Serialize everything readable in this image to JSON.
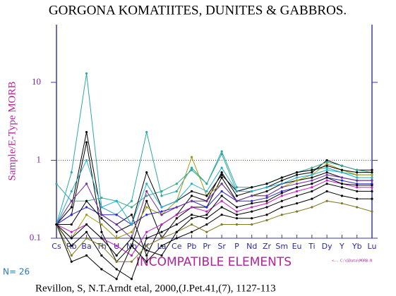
{
  "chart_data": {
    "type": "line",
    "title": "GORGONA KOMATIITES, DUNITES & GABBROS.",
    "y_label": "Sample/E-Type MORB",
    "x_label": "INCOMPATIBLE ELEMENTS",
    "annotation": "N= 26",
    "legend_note": "<-- C:\\GData\\MORB-N",
    "citation": "Revillon, S, N.T.Arndt etal, 2000,(J.Pet.41,(7), 1127-113",
    "log_scale": true,
    "ylim": [
      0.1,
      55
    ],
    "yticks": [
      0.1,
      1,
      10
    ],
    "reference_line": 1,
    "categories": [
      "Cs",
      "Rb",
      "Ba",
      "Th",
      "U",
      "Nb",
      "K",
      "La",
      "Ce",
      "Pb",
      "Pr",
      "Sr",
      "P",
      "Nd",
      "Zr",
      "Sm",
      "Eu",
      "Ti",
      "Dy",
      "Y",
      "Yb",
      "Lu"
    ],
    "series": [
      {
        "color": "#2aa8a8",
        "values": [
          0.15,
          0.7,
          13,
          0.25,
          0.2,
          0.3,
          2.3,
          0.35,
          0.4,
          0.8,
          0.5,
          1.3,
          0.45,
          0.45,
          0.5,
          0.6,
          0.7,
          0.75,
          0.8,
          0.7,
          0.65,
          0.65
        ]
      },
      {
        "color": "#000000",
        "values": [
          0.15,
          0.25,
          2.3,
          0.2,
          0.15,
          0.2,
          0.06,
          0.15,
          0.2,
          0.35,
          0.3,
          0.7,
          0.35,
          0.4,
          0.45,
          0.55,
          0.65,
          0.7,
          1.0,
          0.85,
          0.75,
          0.75
        ]
      },
      {
        "color": "#000000",
        "values": [
          0.15,
          0.2,
          1.7,
          0.12,
          0.05,
          0.08,
          0.3,
          0.1,
          0.18,
          0.25,
          0.25,
          0.6,
          0.3,
          0.35,
          0.4,
          0.5,
          0.55,
          0.6,
          0.7,
          0.6,
          0.55,
          0.55
        ]
      },
      {
        "color": "#a09a10",
        "values": [
          0.15,
          0.1,
          0.2,
          0.15,
          0.1,
          0.12,
          0.25,
          0.2,
          0.3,
          1.1,
          0.35,
          0.5,
          0.3,
          0.35,
          0.35,
          0.45,
          0.55,
          0.65,
          0.9,
          0.75,
          0.65,
          0.65
        ]
      },
      {
        "color": "#3aa890",
        "values": [
          0.5,
          0.3,
          0.3,
          0.33,
          0.3,
          0.25,
          0.35,
          0.4,
          0.5,
          0.75,
          0.5,
          1.2,
          0.4,
          0.45,
          0.5,
          0.6,
          0.7,
          0.8,
          0.95,
          0.85,
          0.75,
          0.7
        ]
      },
      {
        "color": "#2a2ad0",
        "values": [
          0.15,
          0.2,
          0.25,
          0.2,
          0.2,
          0.15,
          0.2,
          0.22,
          0.25,
          0.3,
          0.25,
          0.4,
          0.3,
          0.3,
          0.33,
          0.4,
          0.45,
          0.5,
          0.6,
          0.55,
          0.5,
          0.5
        ]
      },
      {
        "color": "#c020c0",
        "values": [
          0.15,
          0.12,
          0.15,
          0.1,
          0.08,
          0.06,
          0.12,
          0.15,
          0.2,
          0.25,
          0.22,
          0.3,
          0.22,
          0.25,
          0.28,
          0.35,
          0.4,
          0.45,
          0.55,
          0.5,
          0.45,
          0.45
        ]
      },
      {
        "color": "#000000",
        "values": [
          0.15,
          0.08,
          0.12,
          0.06,
          0.04,
          0.03,
          0.1,
          0.12,
          0.15,
          0.2,
          0.18,
          0.25,
          0.2,
          0.22,
          0.25,
          0.3,
          0.35,
          0.4,
          0.5,
          0.45,
          0.4,
          0.4
        ]
      },
      {
        "color": "#7030a0",
        "values": [
          0.15,
          0.3,
          0.5,
          0.2,
          0.15,
          0.1,
          0.4,
          0.2,
          0.25,
          0.3,
          0.3,
          0.5,
          0.3,
          0.35,
          0.35,
          0.45,
          0.5,
          0.55,
          0.65,
          0.6,
          0.55,
          0.55
        ]
      },
      {
        "color": "#000000",
        "values": [
          0.15,
          0.05,
          0.06,
          0.04,
          0.03,
          0.08,
          0.05,
          0.08,
          0.1,
          0.12,
          0.15,
          0.2,
          0.18,
          0.18,
          0.2,
          0.25,
          0.28,
          0.32,
          0.4,
          0.35,
          0.32,
          0.32
        ]
      },
      {
        "color": "#807a20",
        "values": [
          0.15,
          0.06,
          0.1,
          0.08,
          0.05,
          0.05,
          0.08,
          0.1,
          0.12,
          0.15,
          0.12,
          0.15,
          0.15,
          0.15,
          0.17,
          0.2,
          0.22,
          0.25,
          0.3,
          0.28,
          0.25,
          0.22
        ]
      },
      {
        "color": "#000000",
        "values": [
          0.15,
          0.15,
          0.3,
          0.18,
          0.12,
          0.15,
          0.7,
          0.25,
          0.3,
          0.4,
          0.35,
          0.65,
          0.4,
          0.45,
          0.5,
          0.6,
          0.7,
          0.75,
          0.85,
          0.75,
          0.7,
          0.7
        ]
      },
      {
        "color": "#20b0d0",
        "values": [
          0.15,
          0.4,
          1.0,
          0.25,
          0.3,
          0.15,
          0.5,
          0.25,
          0.3,
          0.5,
          0.4,
          0.8,
          0.4,
          0.4,
          0.45,
          0.5,
          0.6,
          0.65,
          0.75,
          0.7,
          0.6,
          0.6
        ]
      },
      {
        "color": "#000000",
        "values": [
          0.15,
          0.1,
          0.15,
          0.1,
          0.06,
          0.1,
          0.07,
          0.06,
          0.12,
          0.18,
          0.2,
          0.35,
          0.25,
          0.28,
          0.3,
          0.38,
          0.45,
          0.5,
          0.6,
          0.5,
          0.48,
          0.48
        ]
      }
    ]
  }
}
